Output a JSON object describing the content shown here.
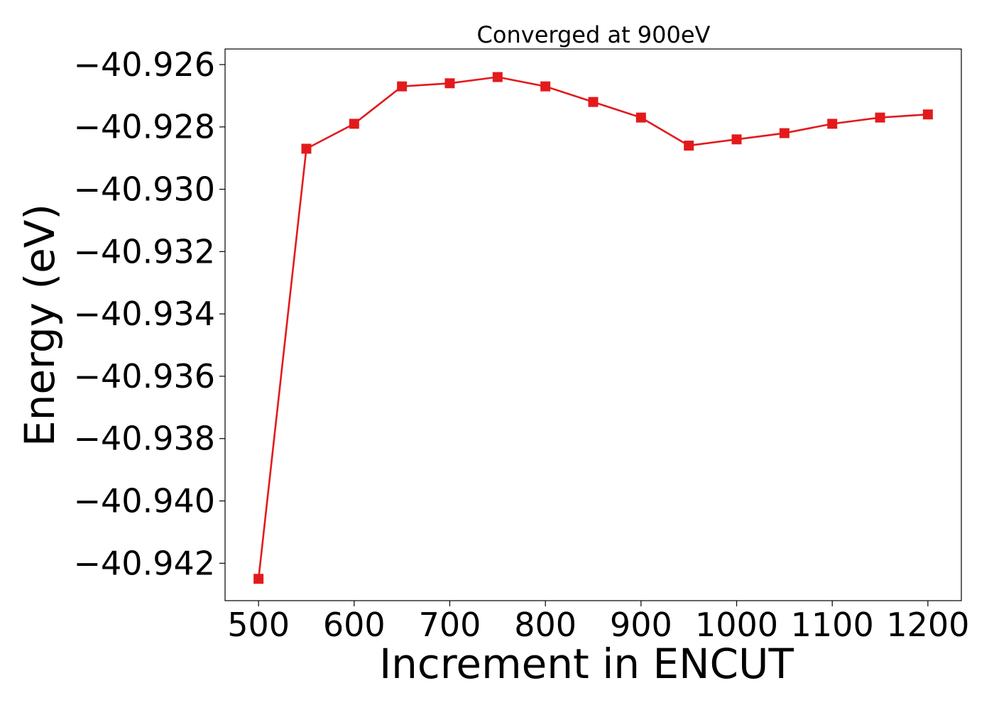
{
  "chart_data": {
    "type": "line",
    "title": "Converged at 900eV",
    "xlabel": "Increment in ENCUT",
    "ylabel": "Energy (eV)",
    "xlim": [
      465,
      1235
    ],
    "ylim": [
      -40.9432,
      -40.9255
    ],
    "x_ticks": [
      500,
      600,
      700,
      800,
      900,
      1000,
      1100,
      1200
    ],
    "y_ticks": [
      -40.926,
      -40.928,
      -40.93,
      -40.932,
      -40.934,
      -40.936,
      -40.938,
      -40.94,
      -40.942
    ],
    "y_tick_decimals": 3,
    "grid": false,
    "legend": "none",
    "series": [
      {
        "color": "#e31a1c",
        "marker": "square",
        "x": [
          500,
          550,
          600,
          650,
          700,
          750,
          800,
          850,
          900,
          950,
          1000,
          1050,
          1100,
          1150,
          1200
        ],
        "y": [
          -40.9425,
          -40.9287,
          -40.9279,
          -40.9267,
          -40.9266,
          -40.9264,
          -40.9267,
          -40.9272,
          -40.9277,
          -40.9286,
          -40.9284,
          -40.9282,
          -40.9279,
          -40.9277,
          -40.9276
        ]
      }
    ]
  }
}
